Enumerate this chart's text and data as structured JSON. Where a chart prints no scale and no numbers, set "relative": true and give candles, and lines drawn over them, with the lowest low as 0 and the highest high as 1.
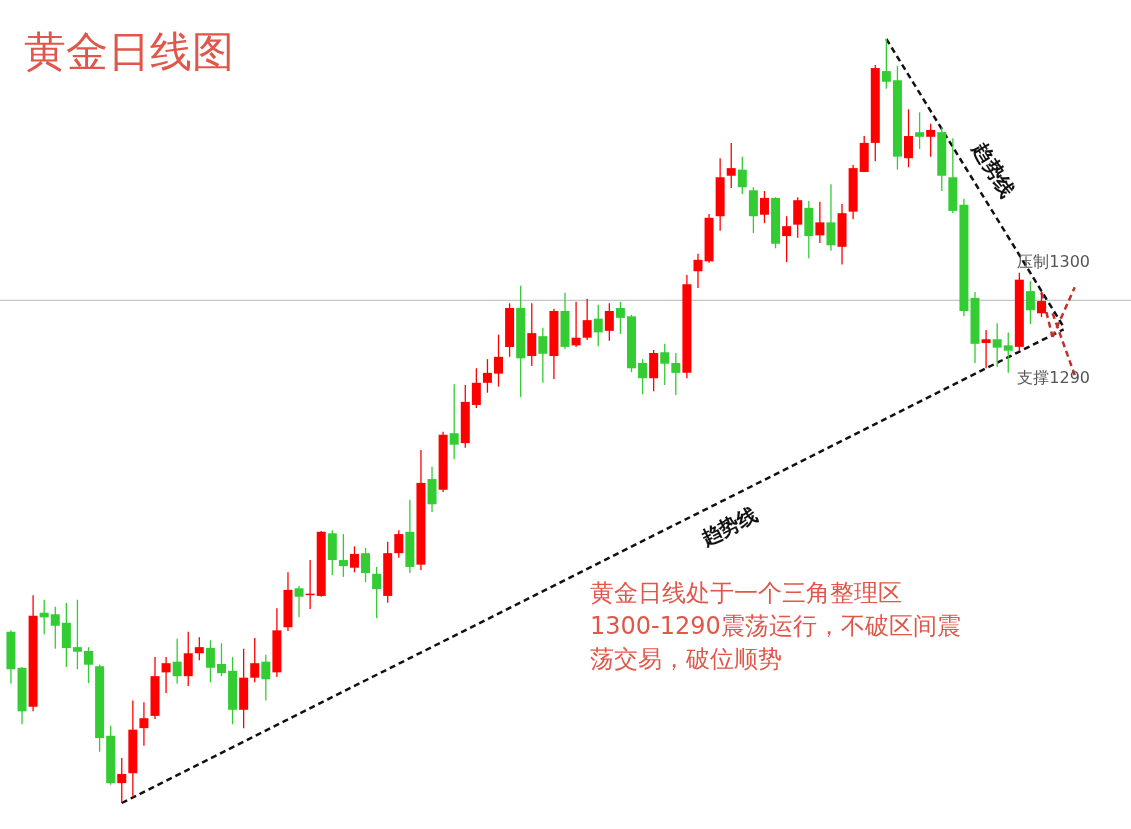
{
  "chart_data": {
    "type": "candlestick",
    "relative": true,
    "title": "黄金日线图",
    "categories": [
      null,
      null,
      null,
      null,
      null,
      null,
      null,
      null,
      null,
      null,
      null,
      null,
      null,
      null,
      null,
      null,
      null,
      null,
      null,
      null,
      null,
      null,
      null,
      null,
      null,
      null,
      null,
      null,
      null,
      null,
      null,
      null,
      null,
      null,
      null,
      null,
      null,
      null,
      null,
      null,
      null,
      null,
      null,
      null,
      null,
      null,
      null,
      null,
      null,
      null,
      null,
      null,
      null,
      null,
      null,
      null,
      null,
      null,
      null,
      null,
      null,
      null,
      null,
      null,
      null,
      null,
      null,
      null,
      null,
      null,
      null,
      null,
      null,
      null,
      null,
      null,
      null,
      null,
      null,
      null,
      null,
      null,
      null,
      null,
      null,
      null,
      null,
      null,
      null,
      null,
      null,
      null,
      null,
      null,
      null,
      null,
      null
    ],
    "ohlc": [
      [
        0.224,
        0.226,
        0.156,
        0.175
      ],
      [
        0.177,
        0.178,
        0.103,
        0.12
      ],
      [
        0.126,
        0.272,
        0.12,
        0.245
      ],
      [
        0.249,
        0.266,
        0.221,
        0.243
      ],
      [
        0.247,
        0.257,
        0.202,
        0.232
      ],
      [
        0.236,
        0.262,
        0.178,
        0.203
      ],
      [
        0.204,
        0.266,
        0.175,
        0.198
      ],
      [
        0.199,
        0.204,
        0.157,
        0.181
      ],
      [
        0.179,
        0.181,
        0.067,
        0.085
      ],
      [
        0.088,
        0.101,
        0.024,
        0.026
      ],
      [
        0.026,
        0.059,
        0,
        0.038
      ],
      [
        0.039,
        0.134,
        0.008,
        0.096
      ],
      [
        0.098,
        0.132,
        0.075,
        0.111
      ],
      [
        0.114,
        0.191,
        0.11,
        0.166
      ],
      [
        0.171,
        0.191,
        0.144,
        0.183
      ],
      [
        0.185,
        0.215,
        0.156,
        0.166
      ],
      [
        0.166,
        0.224,
        0.153,
        0.196
      ],
      [
        0.196,
        0.217,
        0.187,
        0.204
      ],
      [
        0.203,
        0.213,
        0.158,
        0.177
      ],
      [
        0.182,
        0.209,
        0.166,
        0.17
      ],
      [
        0.173,
        0.191,
        0.103,
        0.122
      ],
      [
        0.122,
        0.202,
        0.098,
        0.164
      ],
      [
        0.164,
        0.216,
        0.158,
        0.183
      ],
      [
        0.185,
        0.194,
        0.134,
        0.162
      ],
      [
        0.171,
        0.255,
        0.165,
        0.226
      ],
      [
        0.23,
        0.302,
        0.225,
        0.279
      ],
      [
        0.281,
        0.284,
        0.243,
        0.27
      ],
      [
        0.272,
        0.318,
        0.254,
        0.274
      ],
      [
        0.271,
        0.356,
        0.27,
        0.355
      ],
      [
        0.353,
        0.357,
        0.298,
        0.318
      ],
      [
        0.318,
        0.352,
        0.296,
        0.31
      ],
      [
        0.308,
        0.336,
        0.302,
        0.326
      ],
      [
        0.327,
        0.334,
        0.289,
        0.301
      ],
      [
        0.3,
        0.309,
        0.242,
        0.28
      ],
      [
        0.271,
        0.342,
        0.262,
        0.327
      ],
      [
        0.327,
        0.357,
        0.321,
        0.352
      ],
      [
        0.355,
        0.397,
        0.301,
        0.309
      ],
      [
        0.312,
        0.462,
        0.305,
        0.419
      ],
      [
        0.424,
        0.44,
        0.381,
        0.391
      ],
      [
        0.41,
        0.486,
        0.407,
        0.482
      ],
      [
        0.484,
        0.548,
        0.45,
        0.469
      ],
      [
        0.471,
        0.547,
        0.465,
        0.525
      ],
      [
        0.521,
        0.569,
        0.517,
        0.55
      ],
      [
        0.55,
        0.581,
        0.537,
        0.563
      ],
      [
        0.562,
        0.613,
        0.545,
        0.584
      ],
      [
        0.597,
        0.654,
        0.584,
        0.648
      ],
      [
        0.648,
        0.677,
        0.531,
        0.582
      ],
      [
        0.585,
        0.654,
        0.572,
        0.615
      ],
      [
        0.611,
        0.622,
        0.55,
        0.588
      ],
      [
        0.585,
        0.647,
        0.555,
        0.644
      ],
      [
        0.644,
        0.668,
        0.594,
        0.597
      ],
      [
        0.599,
        0.656,
        0.597,
        0.609
      ],
      [
        0.609,
        0.66,
        0.606,
        0.632
      ],
      [
        0.634,
        0.652,
        0.598,
        0.616
      ],
      [
        0.618,
        0.654,
        0.605,
        0.644
      ],
      [
        0.648,
        0.656,
        0.614,
        0.635
      ],
      [
        0.637,
        0.639,
        0.564,
        0.569
      ],
      [
        0.576,
        0.581,
        0.535,
        0.556
      ],
      [
        0.556,
        0.593,
        0.539,
        0.589
      ],
      [
        0.59,
        0.601,
        0.547,
        0.575
      ],
      [
        0.576,
        0.589,
        0.534,
        0.563
      ],
      [
        0.563,
        0.691,
        0.556,
        0.679
      ],
      [
        0.696,
        0.719,
        0.674,
        0.711
      ],
      [
        0.709,
        0.771,
        0.707,
        0.766
      ],
      [
        0.768,
        0.844,
        0.749,
        0.819
      ],
      [
        0.821,
        0.864,
        0.805,
        0.831
      ],
      [
        0.829,
        0.846,
        0.797,
        0.806
      ],
      [
        0.802,
        0.806,
        0.746,
        0.768
      ],
      [
        0.77,
        0.801,
        0.759,
        0.792
      ],
      [
        0.792,
        0.793,
        0.726,
        0.732
      ],
      [
        0.742,
        0.768,
        0.708,
        0.755
      ],
      [
        0.757,
        0.793,
        0.74,
        0.789
      ],
      [
        0.779,
        0.788,
        0.713,
        0.742
      ],
      [
        0.743,
        0.787,
        0.733,
        0.76
      ],
      [
        0.76,
        0.81,
        0.723,
        0.73
      ],
      [
        0.728,
        0.784,
        0.705,
        0.772
      ],
      [
        0.774,
        0.835,
        0.764,
        0.831
      ],
      [
        0.826,
        0.873,
        0.826,
        0.864
      ],
      [
        0.864,
        0.966,
        0.84,
        0.962
      ],
      [
        0.958,
        1,
        0.935,
        0.944
      ],
      [
        0.946,
        0.965,
        0.829,
        0.846
      ],
      [
        0.844,
        0.908,
        0.832,
        0.873
      ],
      [
        0.878,
        0.904,
        0.856,
        0.872
      ],
      [
        0.872,
        0.889,
        0.846,
        0.881
      ],
      [
        0.878,
        0.884,
        0.801,
        0.821
      ],
      [
        0.819,
        0.87,
        0.772,
        0.775
      ],
      [
        0.783,
        0.791,
        0.637,
        0.644
      ],
      [
        0.661,
        0.669,
        0.576,
        0.601
      ],
      [
        0.602,
        0.619,
        0.569,
        0.607
      ],
      [
        0.607,
        0.628,
        0.571,
        0.596
      ],
      [
        0.599,
        0.616,
        0.563,
        0.592
      ],
      [
        0.597,
        0.694,
        0.592,
        0.685
      ],
      [
        0.67,
        0.683,
        0.627,
        0.645
      ],
      [
        0.641,
        0.67,
        0.636,
        0.657
      ],
      null,
      null,
      null
    ],
    "colors": [
      "#33cc33",
      "#33cc33",
      "#ff0000",
      "#33cc33",
      "#33cc33",
      "#33cc33",
      "#33cc33",
      "#33cc33",
      "#33cc33",
      "#33cc33",
      "#ff0000",
      "#ff0000",
      "#ff0000",
      "#ff0000",
      "#ff0000",
      "#33cc33",
      "#ff0000",
      "#ff0000",
      "#33cc33",
      "#33cc33",
      "#33cc33",
      "#ff0000",
      "#ff0000",
      "#33cc33",
      "#ff0000",
      "#ff0000",
      "#33cc33",
      "#ff0000",
      "#ff0000",
      "#33cc33",
      "#33cc33",
      "#ff0000",
      "#33cc33",
      "#33cc33",
      "#ff0000",
      "#ff0000",
      "#33cc33",
      "#ff0000",
      "#33cc33",
      "#ff0000",
      "#33cc33",
      "#ff0000",
      "#ff0000",
      "#ff0000",
      "#ff0000",
      "#ff0000",
      "#33cc33",
      "#ff0000",
      "#33cc33",
      "#ff0000",
      "#33cc33",
      "#ff0000",
      "#ff0000",
      "#33cc33",
      "#ff0000",
      "#33cc33",
      "#33cc33",
      "#33cc33",
      "#ff0000",
      "#33cc33",
      "#33cc33",
      "#ff0000",
      "#ff0000",
      "#ff0000",
      "#ff0000",
      "#ff0000",
      "#33cc33",
      "#33cc33",
      "#ff0000",
      "#33cc33",
      "#ff0000",
      "#ff0000",
      "#33cc33",
      "#ff0000",
      "#33cc33",
      "#ff0000",
      "#ff0000",
      "#ff0000",
      "#ff0000",
      "#33cc33",
      "#33cc33",
      "#ff0000",
      "#33cc33",
      "#ff0000",
      "#33cc33",
      "#33cc33",
      "#33cc33",
      "#33cc33",
      "#ff0000",
      "#33cc33",
      "#33cc33",
      "#ff0000",
      "#33cc33",
      "#ff0000",
      null,
      null,
      null
    ],
    "series": [
      {
        "type": "line",
        "name": "趋势线",
        "color": "#111111",
        "line_style": "dashed",
        "values": [
          null,
          null,
          null,
          null,
          null,
          null,
          null,
          null,
          null,
          null,
          0,
          null,
          null,
          null,
          null,
          null,
          null,
          null,
          null,
          null,
          null,
          null,
          null,
          null,
          null,
          null,
          null,
          null,
          null,
          null,
          null,
          null,
          null,
          null,
          null,
          null,
          null,
          null,
          null,
          null,
          null,
          null,
          null,
          null,
          null,
          null,
          null,
          null,
          null,
          null,
          null,
          null,
          null,
          null,
          null,
          null,
          null,
          null,
          null,
          null,
          null,
          null,
          null,
          null,
          null,
          null,
          null,
          null,
          null,
          null,
          null,
          null,
          null,
          null,
          null,
          null,
          null,
          null,
          null,
          null,
          null,
          null,
          null,
          null,
          null,
          null,
          null,
          null,
          null,
          null,
          null,
          null,
          null,
          null,
          null,
          0.62,
          null
        ]
      },
      {
        "type": "line",
        "name": "趋势线",
        "color": "#111111",
        "line_style": "dashed",
        "values": [
          null,
          null,
          null,
          null,
          null,
          null,
          null,
          null,
          null,
          null,
          null,
          null,
          null,
          null,
          null,
          null,
          null,
          null,
          null,
          null,
          null,
          null,
          null,
          null,
          null,
          null,
          null,
          null,
          null,
          null,
          null,
          null,
          null,
          null,
          null,
          null,
          null,
          null,
          null,
          null,
          null,
          null,
          null,
          null,
          null,
          null,
          null,
          null,
          null,
          null,
          null,
          null,
          null,
          null,
          null,
          null,
          null,
          null,
          null,
          null,
          null,
          null,
          null,
          null,
          null,
          null,
          null,
          null,
          null,
          null,
          null,
          null,
          null,
          null,
          null,
          null,
          null,
          null,
          null,
          1,
          null,
          null,
          null,
          null,
          null,
          null,
          null,
          null,
          null,
          null,
          null,
          null,
          null,
          null,
          null,
          0.623,
          null
        ]
      },
      {
        "type": "line",
        "color": "#c0302a",
        "line_style": "dashed",
        "values": [
          null,
          null,
          null,
          null,
          null,
          null,
          null,
          null,
          null,
          null,
          null,
          null,
          null,
          null,
          null,
          null,
          null,
          null,
          null,
          null,
          null,
          null,
          null,
          null,
          null,
          null,
          null,
          null,
          null,
          null,
          null,
          null,
          null,
          null,
          null,
          null,
          null,
          null,
          null,
          null,
          null,
          null,
          null,
          null,
          null,
          null,
          null,
          null,
          null,
          null,
          null,
          null,
          null,
          null,
          null,
          null,
          null,
          null,
          null,
          null,
          null,
          null,
          null,
          null,
          null,
          null,
          null,
          null,
          null,
          null,
          null,
          null,
          null,
          null,
          null,
          null,
          null,
          null,
          null,
          null,
          null,
          null,
          null,
          null,
          null,
          null,
          null,
          null,
          null,
          null,
          null,
          null,
          null,
          null,
          0.61,
          null,
          0.675
        ]
      },
      {
        "type": "line",
        "color": "#c0302a",
        "line_style": "dashed",
        "values": [
          null,
          null,
          null,
          null,
          null,
          null,
          null,
          null,
          null,
          null,
          null,
          null,
          null,
          null,
          null,
          null,
          null,
          null,
          null,
          null,
          null,
          null,
          null,
          null,
          null,
          null,
          null,
          null,
          null,
          null,
          null,
          null,
          null,
          null,
          null,
          null,
          null,
          null,
          null,
          null,
          null,
          null,
          null,
          null,
          null,
          null,
          null,
          null,
          null,
          null,
          null,
          null,
          null,
          null,
          null,
          null,
          null,
          null,
          null,
          null,
          null,
          null,
          null,
          null,
          null,
          null,
          null,
          null,
          null,
          null,
          null,
          null,
          null,
          null,
          null,
          null,
          null,
          null,
          null,
          null,
          null,
          null,
          null,
          null,
          null,
          null,
          null,
          null,
          null,
          null,
          null,
          null,
          null,
          0.668,
          0.61,
          null,
          null
        ]
      },
      {
        "type": "line",
        "color": "#c0302a",
        "line_style": "dashed",
        "values": [
          null,
          null,
          null,
          null,
          null,
          null,
          null,
          null,
          null,
          null,
          null,
          null,
          null,
          null,
          null,
          null,
          null,
          null,
          null,
          null,
          null,
          null,
          null,
          null,
          null,
          null,
          null,
          null,
          null,
          null,
          null,
          null,
          null,
          null,
          null,
          null,
          null,
          null,
          null,
          null,
          null,
          null,
          null,
          null,
          null,
          null,
          null,
          null,
          null,
          null,
          null,
          null,
          null,
          null,
          null,
          null,
          null,
          null,
          null,
          null,
          null,
          null,
          null,
          null,
          null,
          null,
          null,
          null,
          null,
          null,
          null,
          null,
          null,
          null,
          null,
          null,
          null,
          null,
          null,
          null,
          null,
          null,
          null,
          null,
          null,
          null,
          null,
          null,
          null,
          null,
          null,
          null,
          null,
          null,
          0.641,
          null,
          0.56
        ]
      }
    ],
    "ref_lines": [
      {
        "axis": "y",
        "value": 0.658,
        "color": "#c4c4cc"
      }
    ],
    "annotations": [
      "压制1300",
      "支撑1290",
      "黄金日线处于一个三角整理区1300-1290震荡运行，不破区间震荡交易，破位顺势"
    ]
  }
}
